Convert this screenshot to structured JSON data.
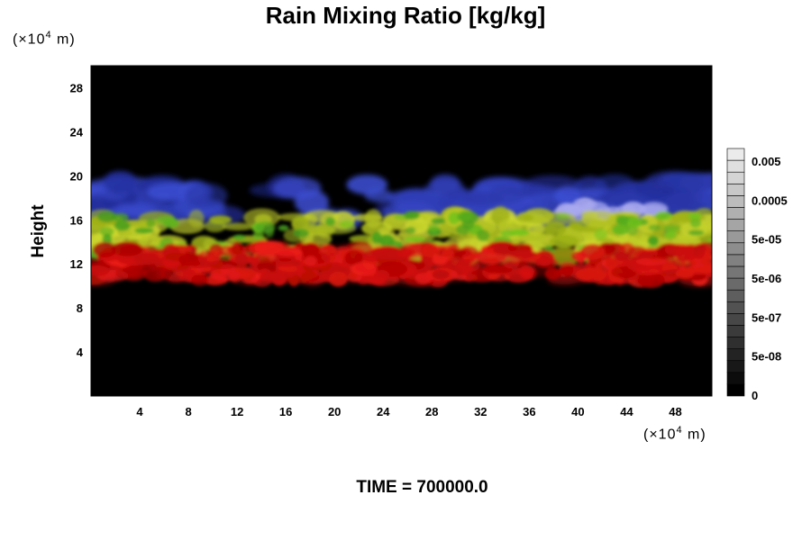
{
  "chart_data": {
    "type": "heatmap",
    "title": "Rain Mixing Ratio [kg/kg]",
    "ylabel": "Height",
    "xlabel": "",
    "x_unit": "(×10",
    "x_unit_exp": "4",
    "x_unit_end": " m)",
    "y_unit": "(×10",
    "y_unit_exp": "4",
    "y_unit_end": " m)",
    "xlim": [
      0,
      51
    ],
    "ylim": [
      0,
      30
    ],
    "x_ticks": [
      "4",
      "8",
      "12",
      "16",
      "20",
      "24",
      "28",
      "32",
      "36",
      "40",
      "44",
      "48"
    ],
    "y_ticks": [
      "4",
      "8",
      "12",
      "16",
      "20",
      "24",
      "28"
    ],
    "background_color": "#000000",
    "colorbar": {
      "labels": [
        "0.005",
        "0.0005",
        "5e-05",
        "5e-06",
        "5e-07",
        "5e-08",
        "0"
      ],
      "levels": 21
    },
    "features": [
      {
        "band": "red",
        "color": "#c81414",
        "y_range": [
          10.5,
          13.5
        ],
        "x_range": [
          0,
          51
        ]
      },
      {
        "band": "yellow-green",
        "color": "#b4c828",
        "y_range": [
          12.5,
          16.5
        ],
        "x_range": [
          0,
          51
        ]
      },
      {
        "band": "blue",
        "color": "#2838d2",
        "y_range": [
          15.5,
          19.5
        ],
        "x_range": [
          0,
          51
        ]
      }
    ],
    "footer": "TIME = 700000.0"
  }
}
